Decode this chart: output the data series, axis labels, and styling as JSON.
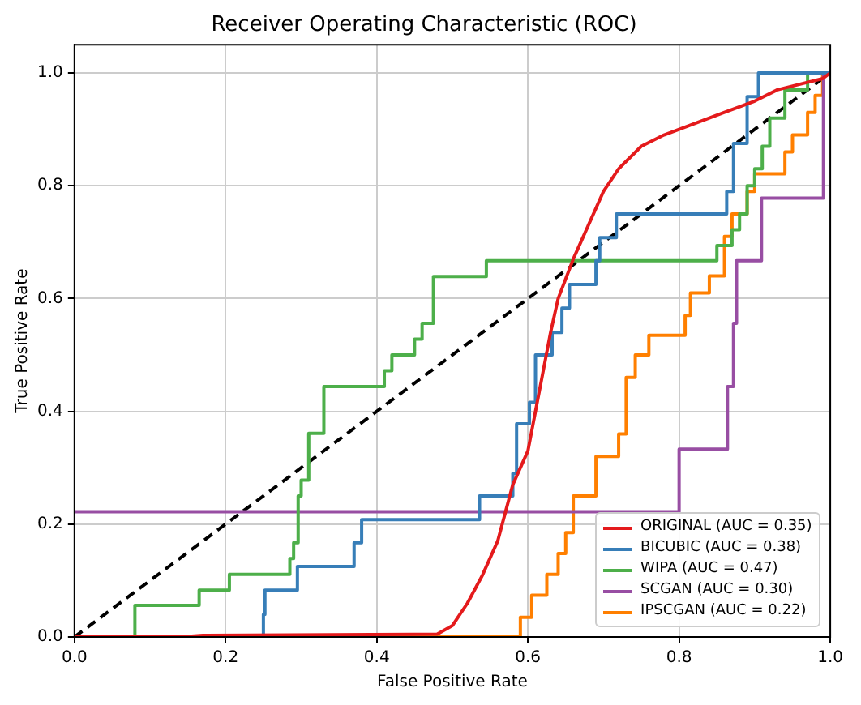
{
  "chart_data": {
    "type": "step",
    "title": "Receiver Operating Characteristic (ROC)",
    "xlabel": "False Positive Rate",
    "ylabel": "True Positive Rate",
    "xlim": [
      0,
      1
    ],
    "ylim": [
      0,
      1.05
    ],
    "xticks": [
      {
        "value": 0,
        "label": "0.0"
      },
      {
        "value": 0.2,
        "label": "0.2"
      },
      {
        "value": 0.4,
        "label": "0.4"
      },
      {
        "value": 0.6,
        "label": "0.6"
      },
      {
        "value": 0.8,
        "label": "0.8"
      },
      {
        "value": 1,
        "label": "1.0"
      }
    ],
    "yticks": [
      {
        "value": 0,
        "label": "0.0"
      },
      {
        "value": 0.2,
        "label": "0.2"
      },
      {
        "value": 0.4,
        "label": "0.4"
      },
      {
        "value": 0.6,
        "label": "0.6"
      },
      {
        "value": 0.8,
        "label": "0.8"
      },
      {
        "value": 1,
        "label": "1.0"
      }
    ],
    "grid": true,
    "legend": "bottom right",
    "series": [
      {
        "name": "ORIGINAL (AUC = 0.35)",
        "color": "#e41a1c",
        "type": "line",
        "x": [
          0,
          0.14,
          0.17,
          0.48,
          0.5,
          0.52,
          0.54,
          0.56,
          0.57,
          0.58,
          0.6,
          0.61,
          0.62,
          0.63,
          0.64,
          0.66,
          0.68,
          0.7,
          0.72,
          0.75,
          0.78,
          0.82,
          0.86,
          0.9,
          0.93,
          0.96,
          0.99,
          1
        ],
        "values": [
          0,
          0,
          0.003,
          0.005,
          0.02,
          0.06,
          0.11,
          0.17,
          0.22,
          0.27,
          0.33,
          0.4,
          0.47,
          0.54,
          0.6,
          0.67,
          0.73,
          0.79,
          0.83,
          0.87,
          0.89,
          0.91,
          0.93,
          0.95,
          0.97,
          0.98,
          0.99,
          1
        ]
      },
      {
        "name": "BICUBIC (AUC = 0.38)",
        "color": "#377eb8",
        "x": [
          0,
          0.25,
          0.252,
          0.295,
          0.37,
          0.38,
          0.536,
          0.58,
          0.585,
          0.602,
          0.61,
          0.632,
          0.645,
          0.655,
          0.69,
          0.695,
          0.717,
          0.863,
          0.872,
          0.89,
          0.905,
          1
        ],
        "values": [
          0,
          0.04,
          0.083,
          0.125,
          0.167,
          0.208,
          0.25,
          0.29,
          0.378,
          0.416,
          0.5,
          0.54,
          0.583,
          0.625,
          0.667,
          0.708,
          0.75,
          0.79,
          0.875,
          0.958,
          1,
          1
        ]
      },
      {
        "name": "WIPA (AUC = 0.47)",
        "color": "#4daf4a",
        "x": [
          0,
          0.08,
          0.165,
          0.205,
          0.285,
          0.29,
          0.296,
          0.3,
          0.31,
          0.33,
          0.41,
          0.42,
          0.45,
          0.46,
          0.475,
          0.545,
          0.85,
          0.87,
          0.88,
          0.89,
          0.9,
          0.91,
          0.92,
          0.94,
          0.97,
          1
        ],
        "values": [
          0,
          0.056,
          0.083,
          0.111,
          0.139,
          0.167,
          0.25,
          0.278,
          0.361,
          0.444,
          0.472,
          0.5,
          0.528,
          0.556,
          0.639,
          0.667,
          0.694,
          0.722,
          0.75,
          0.8,
          0.83,
          0.87,
          0.92,
          0.97,
          1,
          1
        ]
      },
      {
        "name": "SCGAN (AUC = 0.30)",
        "color": "#984ea3",
        "x": [
          0,
          0.8,
          0.864,
          0.872,
          0.876,
          0.909,
          0.991,
          1
        ],
        "values": [
          0.222,
          0.333,
          0.444,
          0.556,
          0.667,
          0.778,
          1,
          1
        ]
      },
      {
        "name": "IPSCGAN (AUC = 0.22)",
        "color": "#ff7f00",
        "x": [
          0,
          0.59,
          0.605,
          0.625,
          0.64,
          0.65,
          0.66,
          0.69,
          0.72,
          0.73,
          0.742,
          0.76,
          0.808,
          0.815,
          0.84,
          0.86,
          0.87,
          0.89,
          0.9,
          0.94,
          0.95,
          0.97,
          0.98,
          0.99,
          1
        ],
        "values": [
          0,
          0.035,
          0.074,
          0.111,
          0.148,
          0.185,
          0.25,
          0.32,
          0.36,
          0.46,
          0.5,
          0.535,
          0.57,
          0.61,
          0.64,
          0.71,
          0.75,
          0.79,
          0.821,
          0.86,
          0.89,
          0.93,
          0.96,
          1,
          1
        ]
      },
      {
        "color": "#000000",
        "type": "line",
        "line_style": "dashed",
        "x": [
          0,
          1
        ],
        "values": [
          0,
          1
        ]
      }
    ]
  }
}
